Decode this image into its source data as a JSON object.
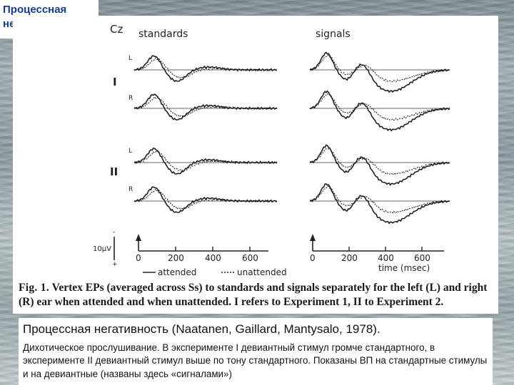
{
  "slide_title": "Процессная негативность",
  "figure": {
    "electrode_label": "Cz",
    "column_titles": {
      "standards": "standards",
      "signals": "signals"
    },
    "row_labels": [
      "L",
      "R",
      "L",
      "R"
    ],
    "experiment_labels": [
      "I",
      "II"
    ],
    "scale_label": "10µV",
    "scale_signs": {
      "minus": "-",
      "plus": "+"
    },
    "x_ticks": [
      "0",
      "200",
      "400",
      "600"
    ],
    "x_axis_label": "time (msec)",
    "legend": {
      "attended": "attended",
      "unattended": "unattended"
    },
    "caption": {
      "lead": "Fig. 1.",
      "text": "Vertex EPs (averaged across Ss) to standards and signals separately for the left (L) and right (R) ear when attended and when unattended. I refers to Experiment 1, II to Experiment 2."
    }
  },
  "description": {
    "heading": "Процессная негативность (Naatanen, Gaillard, Mantysalo, 1978).",
    "body": "Дихотическое прослушивание. В эксперименте I девиантный стимул громче стандартного, в эксперименте II девиантный стимул выше по тону стандартного. Показаны ВП на стандартные стимулы и на девиантные (названы здесь «сигналами»)"
  }
}
